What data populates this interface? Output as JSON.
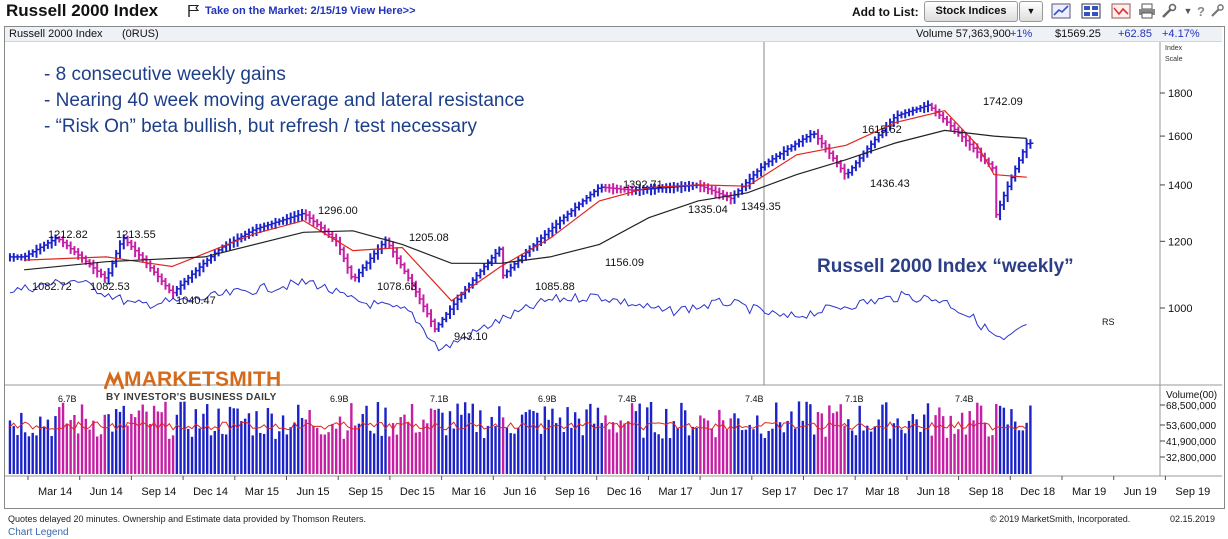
{
  "header": {
    "title": "Russell 2000 Index",
    "market_link": "Take on the Market: 2/15/19 View Here>>",
    "add_to_list_label": "Add to List:",
    "list_selected": "Stock Indices",
    "icons": [
      "line-chart-icon",
      "grid-icon",
      "alert-icon",
      "print-icon",
      "tools-icon",
      "help-icon",
      "settings-icon"
    ]
  },
  "chart_header": {
    "name": "Russell 2000 Index",
    "symbol": "(0RUS)",
    "volume_label": "Volume 57,363,900",
    "volume_change": "+1%",
    "price": "$1569.25",
    "change": "+62.85",
    "change_pct": "+4.17%",
    "scale_label": "Index\nScale"
  },
  "annotations": [
    "- 8 consecutive weekly gains",
    "- Nearing 40 week moving average and lateral resistance",
    "- “Risk On” beta bullish, but refresh / test necessary"
  ],
  "watermark_title": "Russell 2000 Index “weekly”",
  "brand": {
    "name": "MARKETSMITH",
    "subtitle": "BY INVESTOR'S BUSINESS DAILY"
  },
  "footer": {
    "quotes_note": "Quotes delayed 20 minutes. Ownership and Estimate data provided by Thomson Reuters.",
    "copyright": "© 2019 MarketSmith, Incorporated.",
    "date": "02.15.2019",
    "legend_link": "Chart Legend"
  },
  "colors": {
    "up": "#1a22c8",
    "down": "#c51fa3",
    "ma10": "#e0261f",
    "ma40": "#222222",
    "rs": "#2b33c9",
    "volume_ma": "#e0261f",
    "title_blue": "#1d3f8a"
  },
  "chart_data": {
    "type": "line",
    "title": "Russell 2000 Index",
    "timeframe": "weekly",
    "price_axis": {
      "scale": "log",
      "ticks": [
        1000,
        1200,
        1400,
        1600,
        1800
      ],
      "tick_labels": [
        "1000",
        "1200",
        "1400",
        "1600",
        "1800"
      ]
    },
    "x_labels": [
      "Mar 14",
      "Jun 14",
      "Sep 14",
      "Dec 14",
      "Mar 15",
      "Jun 15",
      "Sep 15",
      "Dec 15",
      "Mar 16",
      "Jun 16",
      "Sep 16",
      "Dec 16",
      "Mar 17",
      "Jun 17",
      "Sep 17",
      "Dec 17",
      "Mar 18",
      "Jun 18",
      "Sep 18",
      "Dec 18",
      "Mar 19",
      "Jun 19",
      "Sep 19"
    ],
    "series": [
      {
        "name": "Price",
        "x": [
          "Jan 14",
          "Mar 14",
          "Jun 14",
          "Jul 14",
          "Oct 14",
          "Jan 15",
          "Mar 15",
          "Jun 15",
          "Aug 15",
          "Sep 15",
          "Nov 15",
          "Feb 16",
          "Jun 16",
          "Jun 16",
          "Dec 16",
          "Feb 17",
          "Jun 17",
          "Aug 17",
          "Oct 17",
          "Jan 18",
          "Mar 18",
          "Jun 18",
          "Aug 18",
          "Dec 18",
          "Dec 18",
          "Feb 19"
        ],
        "values": [
          1150,
          1212,
          1082,
          1213,
          1040,
          1180,
          1240,
          1296,
          1200,
          1078,
          1205,
          943,
          1180,
          1086,
          1392,
          1380,
          1400,
          1349,
          1480,
          1615,
          1436,
          1690,
          1742,
          1460,
          1270,
          1569
        ]
      },
      {
        "name": "10-week MA",
        "x": [
          "Jan 14",
          "Jun 14",
          "Oct 14",
          "Mar 15",
          "Jun 15",
          "Sep 15",
          "Dec 15",
          "Mar 16",
          "Jun 16",
          "Sep 16",
          "Dec 16",
          "Mar 17",
          "Jun 17",
          "Sep 17",
          "Dec 17",
          "Mar 18",
          "Jun 18",
          "Sep 18",
          "Nov 18",
          "Dec 18",
          "Feb 19"
        ],
        "values": [
          1140,
          1150,
          1120,
          1225,
          1270,
          1170,
          1180,
          1020,
          1120,
          1210,
          1340,
          1390,
          1400,
          1395,
          1520,
          1560,
          1660,
          1715,
          1560,
          1440,
          1430
        ]
      },
      {
        "name": "40-week MA",
        "x": [
          "Jan 14",
          "Jun 14",
          "Dec 14",
          "Jun 15",
          "Sep 15",
          "Dec 15",
          "Mar 16",
          "Jun 16",
          "Sep 16",
          "Dec 16",
          "Mar 17",
          "Jun 17",
          "Sep 17",
          "Dec 17",
          "Mar 18",
          "Jun 18",
          "Sep 18",
          "Dec 18",
          "Feb 19"
        ],
        "values": [
          1110,
          1135,
          1150,
          1230,
          1235,
          1190,
          1130,
          1130,
          1150,
          1190,
          1280,
          1340,
          1370,
          1440,
          1500,
          1570,
          1625,
          1600,
          1590
        ]
      },
      {
        "name": "RS",
        "label": "RS"
      },
      {
        "name": "Volume",
        "axis_ticks": [
          "68,500,000",
          "53,600,000",
          "41,900,000",
          "32,800,000"
        ],
        "axis_title": "Volume(00)"
      }
    ],
    "price_labels": [
      "1212.82",
      "1213.55",
      "1082.72",
      "1082.53",
      "1040.47",
      "1296.00",
      "1205.08",
      "1078.63",
      "943.10",
      "1085.88",
      "1156.09",
      "1392.71",
      "1335.04",
      "1349.35",
      "1615.52",
      "1436.43",
      "1742.09"
    ],
    "volume_labels": [
      "6.7B",
      "6.9B",
      "7.1B",
      "6.9B",
      "7.4B",
      "7.4B",
      "7.1B",
      "7.4B"
    ],
    "legend": "none",
    "grid": false
  }
}
